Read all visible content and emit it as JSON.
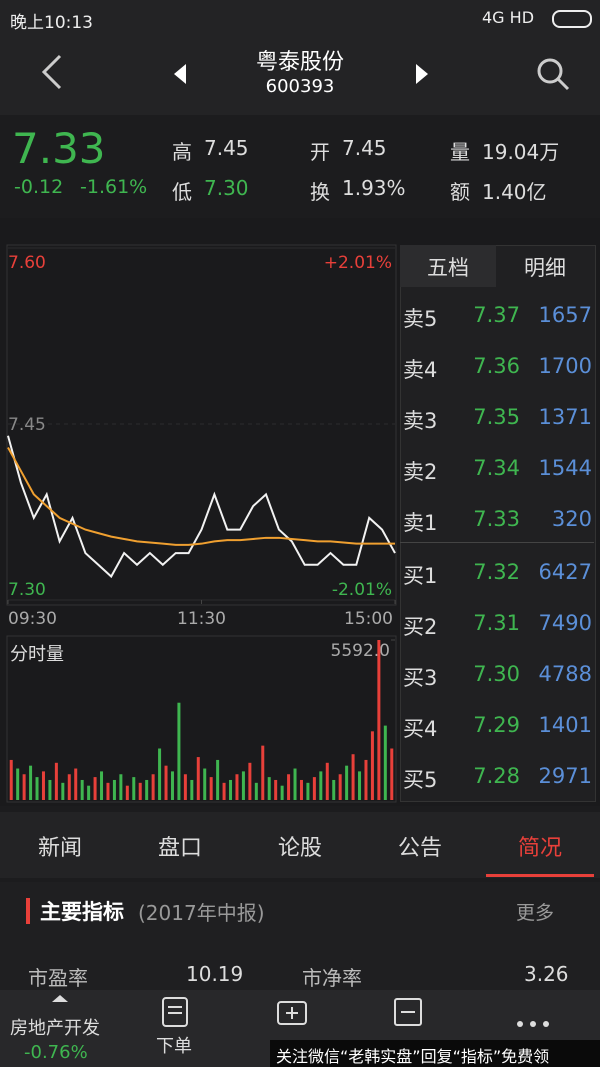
{
  "status_bar": {
    "time": "晚上10:13",
    "network": "4G HD"
  },
  "header": {
    "name": "粤泰股份",
    "code": "600393"
  },
  "quote": {
    "price": "7.33",
    "change": "-0.12",
    "change_pct": "-1.61%",
    "stats": [
      {
        "label": "高",
        "value": "7.45"
      },
      {
        "label": "低",
        "value": "7.30"
      },
      {
        "label": "开",
        "value": "7.45"
      },
      {
        "label": "换",
        "value": "1.93%"
      },
      {
        "label": "量",
        "value": "19.04万"
      },
      {
        "label": "额",
        "value": "1.40亿"
      }
    ]
  },
  "intraday": {
    "type": "line",
    "x": [
      0,
      8,
      16,
      24,
      32,
      40,
      48,
      56,
      64,
      72,
      80,
      88,
      96,
      104,
      112,
      120,
      128,
      136,
      144,
      152,
      160,
      168,
      176,
      184,
      192,
      200,
      208,
      216,
      224,
      232,
      240
    ],
    "xlim": [
      0,
      240
    ],
    "xticks": [
      {
        "value": 0,
        "label": "09:30"
      },
      {
        "value": 120,
        "label": "11:30"
      },
      {
        "value": 240,
        "label": "15:00"
      }
    ],
    "ylim": [
      7.3,
      7.6
    ],
    "yticks": [
      {
        "value": 7.6,
        "label": "7.60"
      },
      7.45,
      {
        "value": 7.3,
        "label": "7.30"
      }
    ],
    "pct_labels": [
      "+2.01%",
      "-2.01%"
    ],
    "series": [
      {
        "color": "#f2f2f2",
        "values": [
          7.44,
          7.4,
          7.37,
          7.39,
          7.35,
          7.37,
          7.34,
          7.33,
          7.32,
          7.34,
          7.33,
          7.34,
          7.33,
          7.34,
          7.34,
          7.36,
          7.39,
          7.36,
          7.36,
          7.38,
          7.39,
          7.36,
          7.35,
          7.33,
          7.33,
          7.34,
          7.33,
          7.33,
          7.37,
          7.36,
          7.34
        ]
      },
      {
        "color": "#f0a030",
        "values": [
          7.43,
          7.41,
          7.39,
          7.38,
          7.37,
          7.365,
          7.36,
          7.357,
          7.354,
          7.352,
          7.35,
          7.349,
          7.348,
          7.347,
          7.347,
          7.348,
          7.35,
          7.351,
          7.351,
          7.352,
          7.353,
          7.353,
          7.352,
          7.351,
          7.35,
          7.35,
          7.349,
          7.348,
          7.348,
          7.348,
          7.348
        ]
      }
    ]
  },
  "volume": {
    "type": "bar",
    "title": "分时量",
    "x": [
      2,
      6,
      10,
      14,
      18,
      22,
      26,
      30,
      34,
      38,
      42,
      46,
      50,
      54,
      58,
      62,
      66,
      70,
      74,
      78,
      82,
      86,
      90,
      94,
      98,
      102,
      106,
      110,
      114,
      118,
      122,
      126,
      130,
      134,
      138,
      142,
      146,
      150,
      154,
      158,
      162,
      166,
      170,
      174,
      178,
      182,
      186,
      190,
      194,
      198,
      202,
      206,
      210,
      214,
      218,
      222,
      226,
      230,
      234,
      238
    ],
    "values": [
      1400,
      1100,
      900,
      1200,
      800,
      1000,
      700,
      1300,
      600,
      900,
      1100,
      700,
      500,
      800,
      1000,
      600,
      700,
      900,
      500,
      800,
      600,
      700,
      900,
      1800,
      1200,
      1000,
      3400,
      900,
      700,
      1500,
      1100,
      800,
      1400,
      600,
      700,
      900,
      1000,
      1300,
      600,
      1900,
      800,
      700,
      500,
      900,
      1100,
      700,
      600,
      800,
      1000,
      1300,
      700,
      900,
      1200,
      1600,
      1000,
      1400,
      2400,
      5592,
      2600,
      1800
    ],
    "colors": [
      "#e8403a",
      "#3fb650",
      "#e8403a",
      "#3fb650",
      "#3fb650",
      "#e8403a",
      "#3fb650",
      "#e8403a",
      "#3fb650",
      "#e8403a",
      "#e8403a",
      "#3fb650",
      "#3fb650",
      "#e8403a",
      "#3fb650",
      "#e8403a",
      "#3fb650",
      "#3fb650",
      "#e8403a",
      "#3fb650",
      "#e8403a",
      "#3fb650",
      "#e8403a",
      "#3fb650",
      "#e8403a",
      "#3fb650",
      "#3fb650",
      "#e8403a",
      "#3fb650",
      "#e8403a",
      "#3fb650",
      "#e8403a",
      "#3fb650",
      "#e8403a",
      "#3fb650",
      "#e8403a",
      "#3fb650",
      "#e8403a",
      "#3fb650",
      "#e8403a",
      "#3fb650",
      "#e8403a",
      "#3fb650",
      "#e8403a",
      "#3fb650",
      "#e8403a",
      "#3fb650",
      "#e8403a",
      "#3fb650",
      "#e8403a",
      "#3fb650",
      "#e8403a",
      "#3fb650",
      "#e8403a",
      "#3fb650",
      "#e8403a",
      "#e8403a",
      "#e8403a",
      "#3fb650",
      "#e8403a"
    ],
    "ylim": [
      0,
      5592
    ],
    "yticks": [
      {
        "value": 5592,
        "label": "5592.0"
      }
    ]
  },
  "order_book": {
    "tabs": [
      "五档",
      "明细"
    ],
    "rows": [
      [
        "卖5",
        "7.37",
        "1657"
      ],
      [
        "卖4",
        "7.36",
        "1700"
      ],
      [
        "卖3",
        "7.35",
        "1371"
      ],
      [
        "卖2",
        "7.34",
        "1544"
      ],
      [
        "卖1",
        "7.33",
        "320"
      ],
      [
        "买1",
        "7.32",
        "6427"
      ],
      [
        "买2",
        "7.31",
        "7490"
      ],
      [
        "买3",
        "7.30",
        "4788"
      ],
      [
        "买4",
        "7.29",
        "1401"
      ],
      [
        "买5",
        "7.28",
        "2971"
      ]
    ]
  },
  "tabs": [
    "新闻",
    "盘口",
    "论股",
    "公告",
    "简况"
  ],
  "section": {
    "title": "主要指标",
    "subtitle": "(2017年中报)",
    "more": "更多",
    "row": [
      "市盈率",
      "10.19",
      "市净率",
      "3.26"
    ]
  },
  "bottom_nav": {
    "sector": "房地产开发",
    "sector_change": "-0.76%",
    "order": "下单",
    "watermark": "关注微信“老韩实盘”回复“指标”免费领"
  }
}
